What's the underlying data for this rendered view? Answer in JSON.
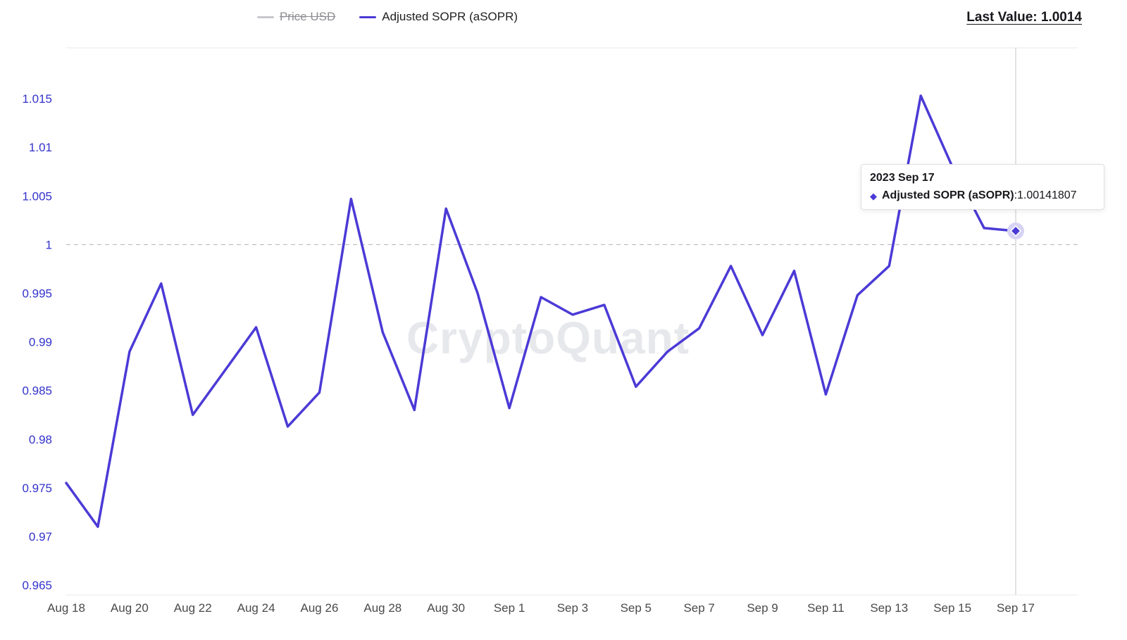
{
  "watermark": "CryptoQuant",
  "header": {
    "last_value": "Last Value: 1.0014"
  },
  "legend": {
    "items": [
      {
        "label": "Price USD",
        "disabled": true,
        "color": "#c8c8cc"
      },
      {
        "label": "Adjusted SOPR (aSOPR)",
        "disabled": false,
        "color": "#4B3AD6"
      }
    ]
  },
  "tooltip": {
    "title": "2023 Sep 17",
    "series_label": "Adjusted SOPR (aSOPR)",
    "separator": ": ",
    "value": "1.00141807"
  },
  "chart_data": {
    "type": "line",
    "title": "Adjusted SOPR (aSOPR)",
    "xlabel": "",
    "ylabel": "",
    "ylim": [
      0.96399,
      1.02022
    ],
    "baseline": 1.0,
    "grid": "off",
    "legend_position": "top-center",
    "x": [
      "Aug 18",
      "Aug 19",
      "Aug 20",
      "Aug 21",
      "Aug 22",
      "Aug 23",
      "Aug 24",
      "Aug 25",
      "Aug 26",
      "Aug 27",
      "Aug 28",
      "Aug 29",
      "Aug 30",
      "Aug 31",
      "Sep 1",
      "Sep 2",
      "Sep 3",
      "Sep 4",
      "Sep 5",
      "Sep 6",
      "Sep 7",
      "Sep 8",
      "Sep 9",
      "Sep 10",
      "Sep 11",
      "Sep 12",
      "Sep 13",
      "Sep 14",
      "Sep 15",
      "Sep 16",
      "Sep 17"
    ],
    "series": [
      {
        "name": "Adjusted SOPR (aSOPR)",
        "color": "#4B3AD6",
        "values": [
          0.9755,
          0.971,
          0.989,
          0.996,
          0.9825,
          0.987,
          0.9915,
          0.9813,
          0.9848,
          1.0047,
          0.991,
          0.983,
          1.0037,
          0.995,
          0.9832,
          0.9946,
          0.9928,
          0.9938,
          0.9854,
          0.989,
          0.9914,
          0.9978,
          0.9907,
          0.9973,
          0.9846,
          0.9948,
          0.9978,
          1.0153,
          1.008,
          1.0017,
          1.0014
        ]
      },
      {
        "name": "Price USD",
        "color": "#c8c8cc",
        "values": []
      }
    ],
    "last_point": {
      "date": "2023 Sep 17",
      "value": 1.00141807,
      "display": "1.0014"
    },
    "x_tick_labels": [
      "Aug 18",
      "Aug 20",
      "Aug 22",
      "Aug 24",
      "Aug 26",
      "Aug 28",
      "Aug 30",
      "Sep 1",
      "Sep 3",
      "Sep 5",
      "Sep 7",
      "Sep 9",
      "Sep 11",
      "Sep 13",
      "Sep 15",
      "Sep 17"
    ],
    "x_tick_step": 2,
    "y_ticks": [
      0.965,
      0.97,
      0.975,
      0.98,
      0.985,
      0.99,
      0.995,
      1,
      1.005,
      1.01,
      1.015
    ],
    "y_tick_labels": [
      "0.965",
      "0.97",
      "0.975",
      "0.98",
      "0.985",
      "0.99",
      "0.995",
      "1",
      "1.005",
      "1.01",
      "1.015"
    ],
    "colors": {
      "line": "#4B3AD6",
      "y_label": "#3333CC",
      "x_label": "#4a4a4a",
      "grid": "#e8e8e8",
      "baseline": "#b3b3b3",
      "crosshair": "#d9d9d9",
      "marker_halo": "#d7d3f4",
      "marker_stroke": "#ffffff"
    }
  }
}
